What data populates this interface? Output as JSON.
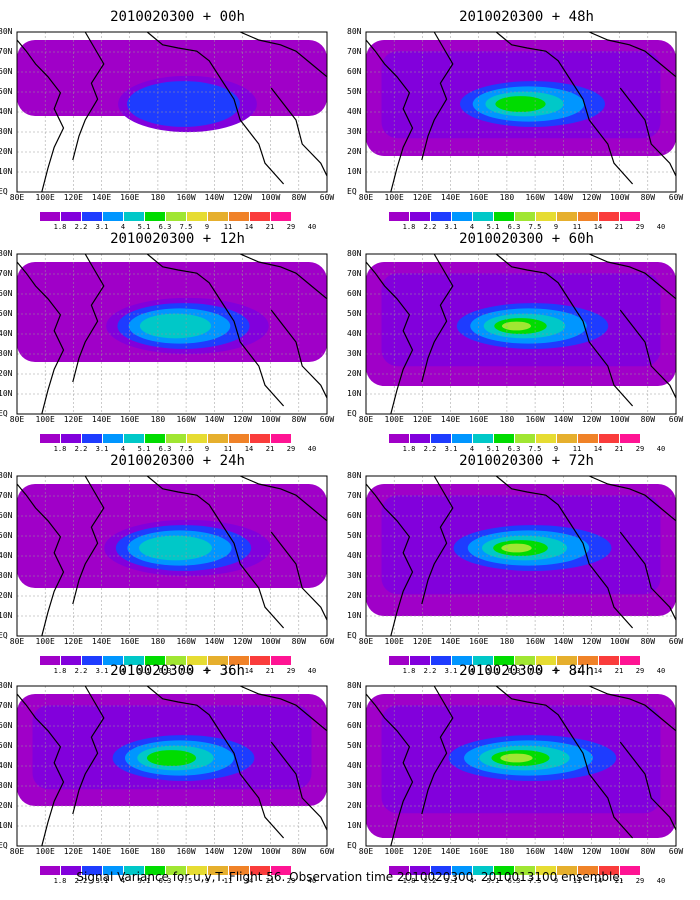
{
  "panels": [
    {
      "title": "2010020300 + 00h"
    },
    {
      "title": "2010020300 + 12h"
    },
    {
      "title": "2010020300 + 24h"
    },
    {
      "title": "2010020300 + 36h"
    },
    {
      "title": "2010020300 + 48h"
    },
    {
      "title": "2010020300 + 60h"
    },
    {
      "title": "2010020300 + 72h"
    },
    {
      "title": "2010020300 + 84h"
    }
  ],
  "lat_labels": [
    "80N",
    "70N",
    "60N",
    "50N",
    "40N",
    "30N",
    "20N",
    "10N",
    "EQ"
  ],
  "lon_labels": [
    "80E",
    "100E",
    "120E",
    "140E",
    "160E",
    "180",
    "160W",
    "140W",
    "120W",
    "100W",
    "80W",
    "60W"
  ],
  "colorbar": {
    "labels": [
      "1.8",
      "2.2",
      "3.1",
      "4",
      "5.1",
      "6.3",
      "7.5",
      "9",
      "11",
      "14",
      "21",
      "29",
      "40"
    ],
    "colors": [
      "#a000c8",
      "#8200dc",
      "#1e3cff",
      "#0096ff",
      "#00c8c8",
      "#00dc00",
      "#a0e632",
      "#e6dc32",
      "#e6af2d",
      "#f08228",
      "#fa3c3c",
      "#ff1493",
      "#ffffff"
    ]
  },
  "caption": "Signal Variance for u,v,T. Flight 56. Observation time 2010020300. 2010013100 ensemble."
}
